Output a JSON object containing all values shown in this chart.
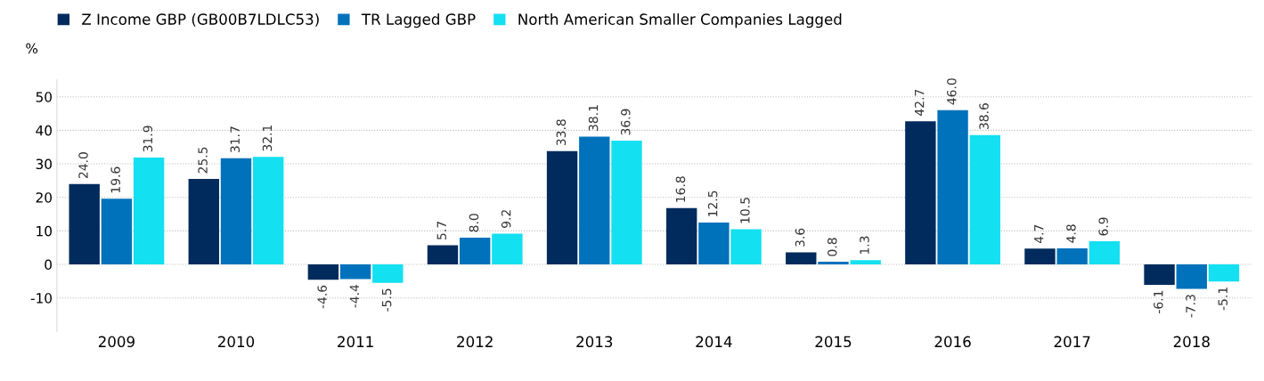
{
  "chart_data": {
    "type": "bar",
    "ylabel": "%",
    "categories": [
      "2009",
      "2010",
      "2011",
      "2012",
      "2013",
      "2014",
      "2015",
      "2016",
      "2017",
      "2018"
    ],
    "series": [
      {
        "name": "Z Income GBP (GB00B7LDLC53)",
        "color": "#002b5c",
        "values": [
          24.0,
          25.5,
          -4.6,
          5.7,
          33.8,
          16.8,
          3.6,
          42.7,
          4.7,
          -6.1
        ],
        "value_labels": [
          "24.0",
          "25.5",
          "-4.6",
          "5.7",
          "33.8",
          "16.8",
          "3.6",
          "42.7",
          "4.7",
          "-6.1"
        ]
      },
      {
        "name": "TR Lagged GBP",
        "color": "#0072bb",
        "values": [
          19.6,
          31.7,
          -4.4,
          8.0,
          38.1,
          12.5,
          0.8,
          46.0,
          4.8,
          -7.3
        ],
        "value_labels": [
          "19.6",
          "31.7",
          "-4.4",
          "8.0",
          "38.1",
          "12.5",
          "0.8",
          "46.0",
          "4.8",
          "-7.3"
        ]
      },
      {
        "name": "North American Smaller Companies Lagged",
        "color": "#13e0f0",
        "values": [
          31.9,
          32.1,
          -5.5,
          9.2,
          36.9,
          10.5,
          1.3,
          38.6,
          6.9,
          -5.1
        ],
        "value_labels": [
          "31.9",
          "32.1",
          "-5.5",
          "9.2",
          "36.9",
          "10.5",
          "1.3",
          "38.6",
          "6.9",
          "-5.1"
        ]
      }
    ],
    "ylim": [
      -20,
      55
    ],
    "yticks": [
      -10,
      0,
      10,
      20,
      30,
      40,
      50
    ],
    "grid": "y",
    "legend": "top left"
  }
}
